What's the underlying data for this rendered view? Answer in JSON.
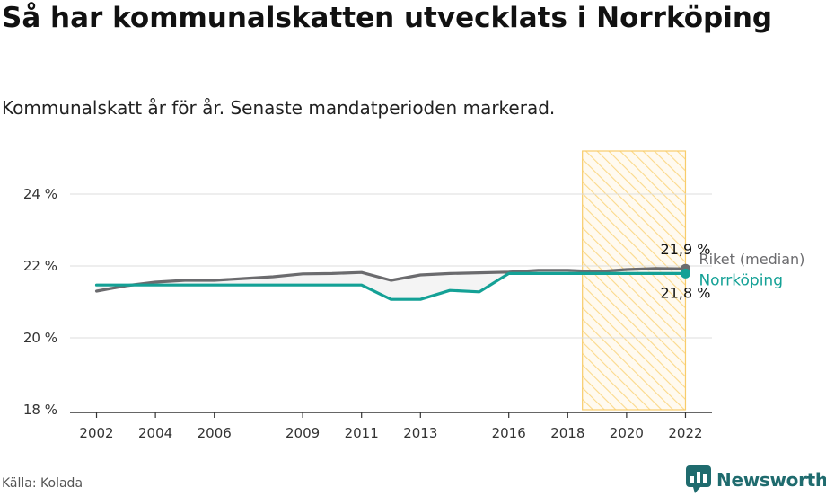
{
  "header": {
    "title": "Så har kommunalskatten utvecklats i Norrköping",
    "subtitle": "Kommunalskatt år för år. Senaste mandatperioden markerad."
  },
  "footer": {
    "source": "Källa: Kolada",
    "brand": "Newsworthy"
  },
  "colors": {
    "riket": "#6b6b6e",
    "norrkoping": "#14a196",
    "highlight_fill": "#fde7b0",
    "highlight_stroke": "#f8cc6a",
    "grid": "#dddddd"
  },
  "chart_data": {
    "type": "line",
    "title": "Så har kommunalskatten utvecklats i Norrköping",
    "subtitle": "Kommunalskatt år för år. Senaste mandatperioden markerad.",
    "x": [
      2002,
      2003,
      2004,
      2005,
      2006,
      2007,
      2008,
      2009,
      2010,
      2011,
      2012,
      2013,
      2014,
      2015,
      2016,
      2017,
      2018,
      2019,
      2020,
      2021,
      2022
    ],
    "xticks": [
      2002,
      2004,
      2006,
      2009,
      2011,
      2013,
      2016,
      2018,
      2020,
      2022
    ],
    "xtick_labels": [
      "2002",
      "2004",
      "2006",
      "2009",
      "2011",
      "2013",
      "2016",
      "2018",
      "2020",
      "2022"
    ],
    "yticks": [
      18,
      20,
      22,
      24
    ],
    "ytick_labels": [
      "18 %",
      "20 %",
      "22 %",
      "24 %"
    ],
    "ylim": [
      18,
      25.2
    ],
    "xlim": [
      2001.1,
      2022.9
    ],
    "grid": true,
    "highlight": {
      "from": 2018.5,
      "to": 2022
    },
    "series": [
      {
        "name": "Riket (median)",
        "color": "#6b6b6e",
        "values": [
          21.3,
          21.45,
          21.55,
          21.6,
          21.6,
          21.65,
          21.7,
          21.78,
          21.79,
          21.82,
          21.6,
          21.75,
          21.79,
          21.81,
          21.83,
          21.88,
          21.88,
          21.84,
          21.9,
          21.93,
          21.92
        ],
        "end_label": "21,9 %"
      },
      {
        "name": "Norrköping",
        "color": "#14a196",
        "values": [
          21.47,
          21.47,
          21.47,
          21.47,
          21.47,
          21.47,
          21.47,
          21.47,
          21.47,
          21.47,
          21.07,
          21.07,
          21.32,
          21.28,
          21.79,
          21.79,
          21.79,
          21.79,
          21.79,
          21.79,
          21.79
        ],
        "end_label": "21,8 %"
      }
    ]
  }
}
